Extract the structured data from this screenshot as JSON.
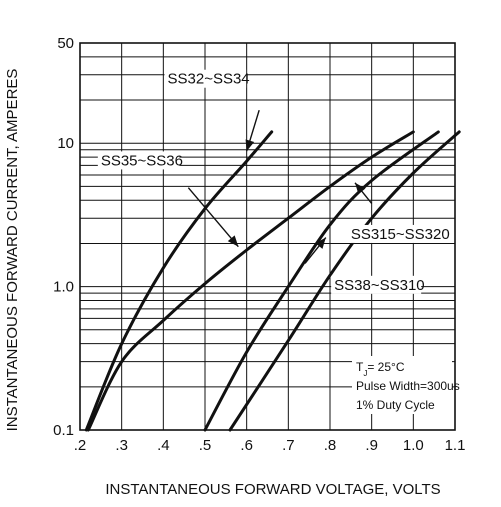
{
  "chart_data": {
    "type": "line",
    "title": "",
    "xlabel": "INSTANTANEOUS FORWARD VOLTAGE, VOLTS",
    "ylabel": "INSTANTANEOUS FORWARD CURRENT, AMPERES",
    "xlim": [
      0.2,
      1.1
    ],
    "ylim": [
      0.1,
      50
    ],
    "yscale": "log",
    "grid": true,
    "x_ticks": [
      {
        "value": 0.2,
        "label": ".2"
      },
      {
        "value": 0.3,
        "label": ".3"
      },
      {
        "value": 0.4,
        "label": ".4"
      },
      {
        "value": 0.5,
        "label": ".5"
      },
      {
        "value": 0.6,
        "label": ".6"
      },
      {
        "value": 0.7,
        "label": ".7"
      },
      {
        "value": 0.8,
        "label": ".8"
      },
      {
        "value": 0.9,
        "label": ".9"
      },
      {
        "value": 1.0,
        "label": "1.0"
      },
      {
        "value": 1.1,
        "label": "1.1"
      }
    ],
    "y_ticks": [
      {
        "value": 0.1,
        "label": "0.1"
      },
      {
        "value": 1,
        "label": "1.0"
      },
      {
        "value": 10,
        "label": "10"
      },
      {
        "value": 50,
        "label": "50"
      }
    ],
    "series": [
      {
        "name": "SS32~SS34",
        "x": [
          0.215,
          0.3,
          0.4,
          0.5,
          0.6,
          0.66
        ],
        "y": [
          0.1,
          0.4,
          1.35,
          3.5,
          7.5,
          12
        ],
        "label_pos": {
          "x": 0.41,
          "y": 26
        },
        "arrow": {
          "from": {
            "x": 0.63,
            "y": 17
          },
          "to": {
            "x": 0.6,
            "y": 8.8
          }
        }
      },
      {
        "name": "SS35~SS36",
        "x": [
          0.22,
          0.3,
          0.4,
          0.5,
          0.6,
          0.7,
          0.8,
          0.9,
          1.0
        ],
        "y": [
          0.1,
          0.3,
          0.58,
          1.05,
          1.8,
          3.0,
          5.0,
          8.0,
          12
        ],
        "label_pos": {
          "x": 0.25,
          "y": 7.0
        },
        "arrow": {
          "from": {
            "x": 0.46,
            "y": 4.9
          },
          "to": {
            "x": 0.58,
            "y": 1.9
          }
        }
      },
      {
        "name": "SS38~SS310",
        "x": [
          0.5,
          0.6,
          0.7,
          0.8,
          0.9,
          1.06
        ],
        "y": [
          0.1,
          0.35,
          1.0,
          2.7,
          5.5,
          12
        ],
        "label_pos": {
          "x": 0.81,
          "y": 0.95
        },
        "arrow": {
          "from": {
            "x": 0.74,
            "y": 1.45
          },
          "to": {
            "x": 0.79,
            "y": 2.2
          }
        }
      },
      {
        "name": "SS315~SS320",
        "x": [
          0.56,
          0.7,
          0.8,
          0.9,
          1.0,
          1.11
        ],
        "y": [
          0.1,
          0.42,
          1.2,
          3.0,
          6.2,
          12
        ],
        "label_pos": {
          "x": 0.85,
          "y": 2.15
        },
        "arrow": {
          "from": {
            "x": 0.9,
            "y": 3.8
          },
          "to": {
            "x": 0.86,
            "y": 5.3
          }
        }
      }
    ],
    "notes": [
      {
        "text": "T",
        "sub": "J",
        "rest": "= 25°C"
      },
      {
        "text": "Pulse Width=300us"
      },
      {
        "text": "1% Duty Cycle"
      }
    ]
  }
}
